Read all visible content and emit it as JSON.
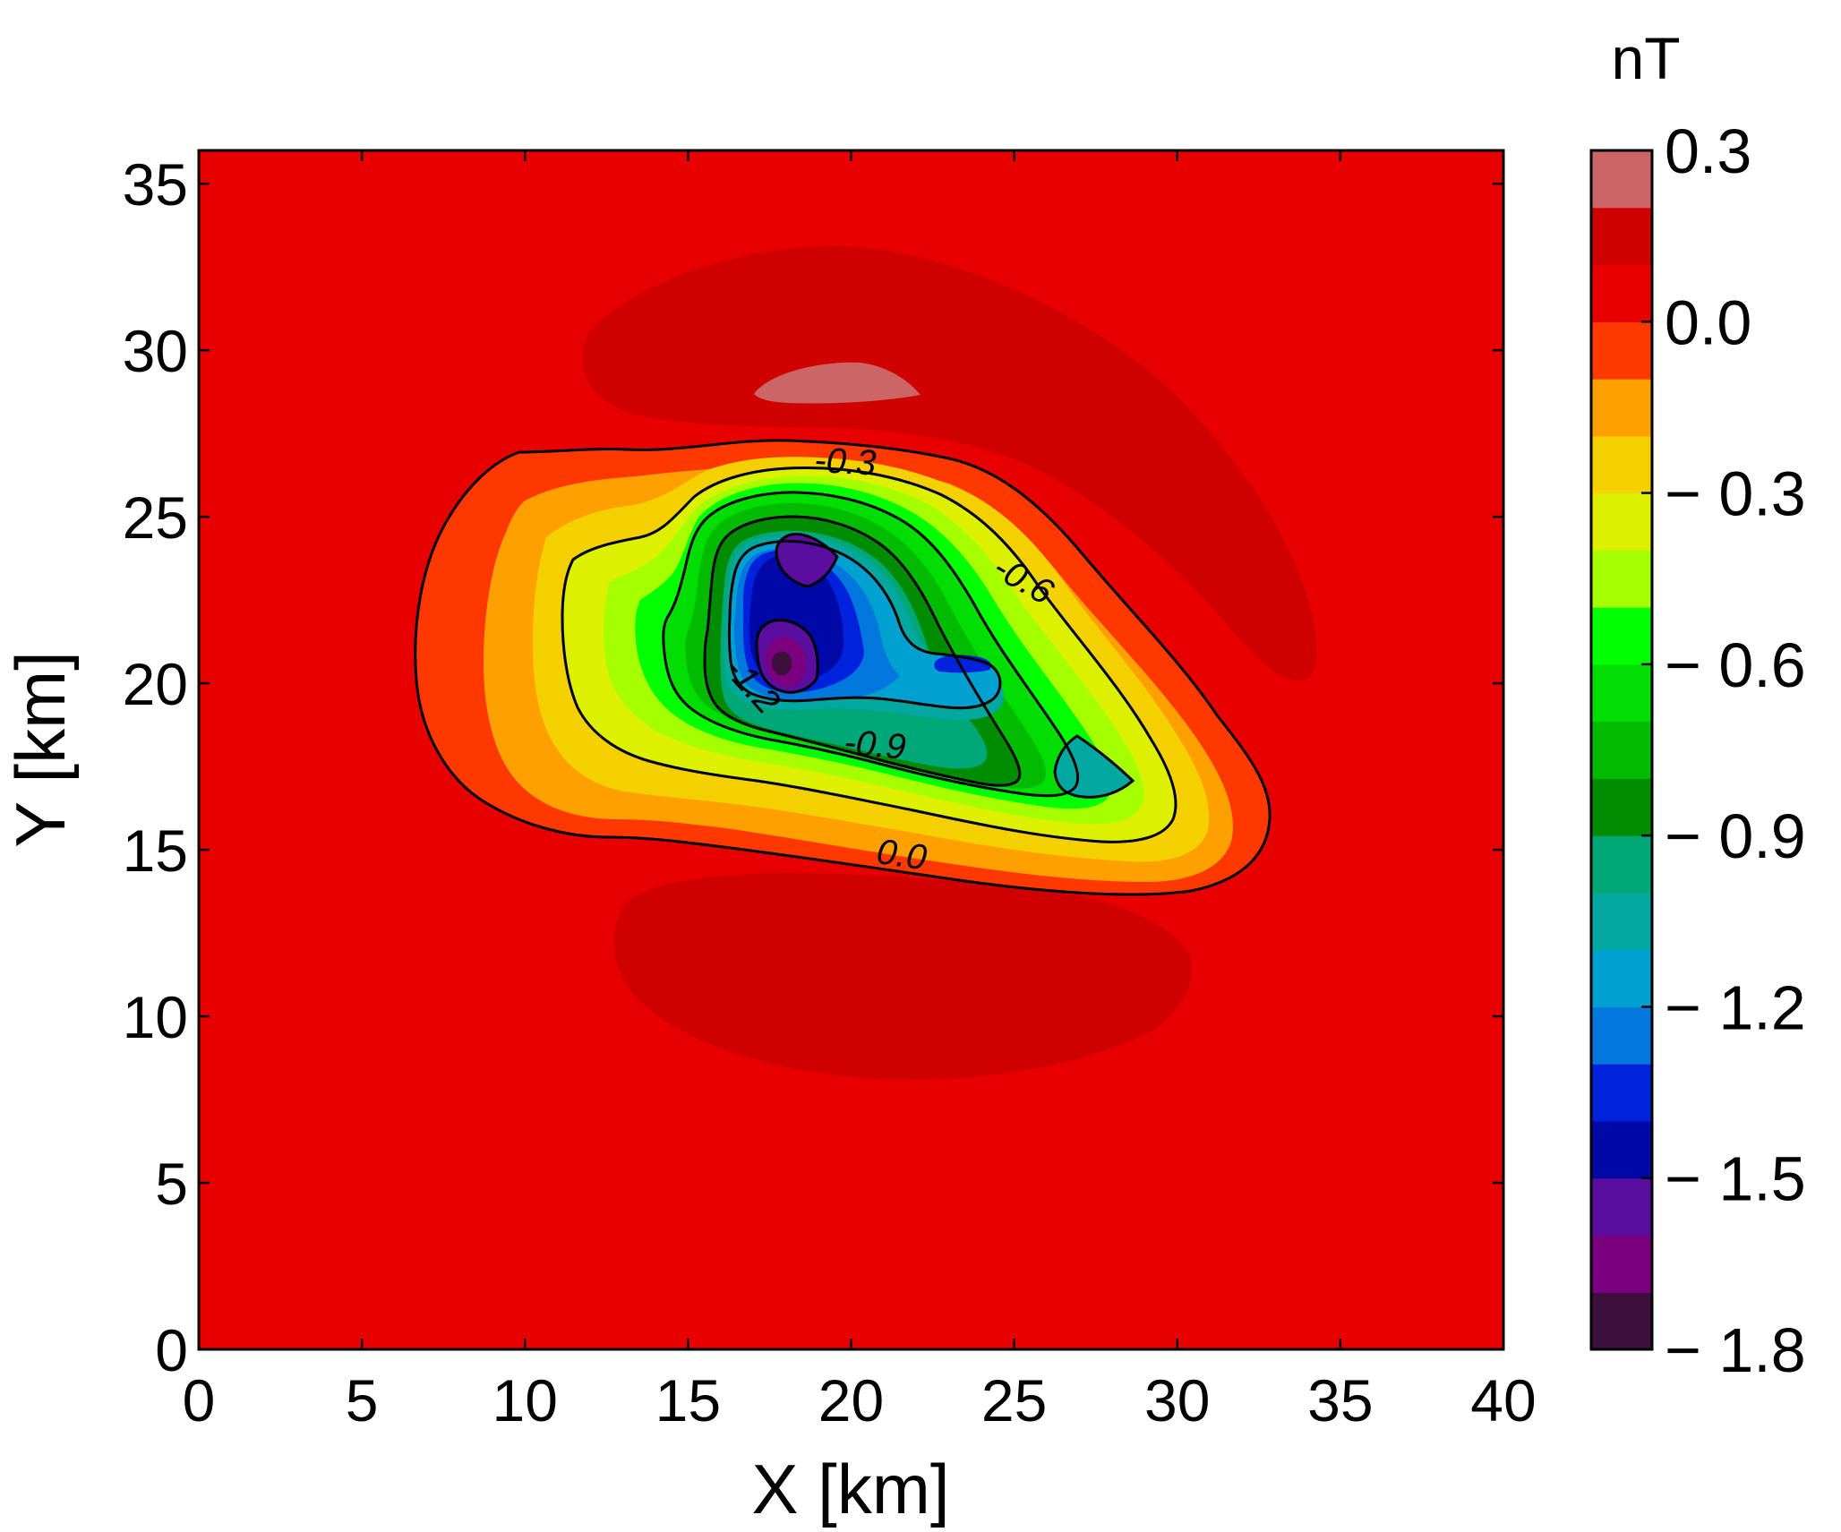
{
  "chart_data": {
    "type": "heatmap",
    "subtype": "filled-contour",
    "xlabel": "X [km]",
    "ylabel": "Y [km]",
    "xlim": [
      0,
      40
    ],
    "ylim": [
      0,
      36
    ],
    "xticks": [
      0,
      5,
      10,
      15,
      20,
      25,
      30,
      35,
      40
    ],
    "yticks": [
      0,
      5,
      10,
      15,
      20,
      25,
      30,
      35
    ],
    "colorbar": {
      "unit_label": "nT",
      "range": [
        -1.8,
        0.3
      ],
      "levels": [
        -1.8,
        -1.7,
        -1.6,
        -1.5,
        -1.4,
        -1.3,
        -1.2,
        -1.1,
        -1.0,
        -0.9,
        -0.8,
        -0.7,
        -0.6,
        -0.5,
        -0.4,
        -0.3,
        -0.2,
        -0.1,
        0.0,
        0.1,
        0.2,
        0.3
      ],
      "colors": [
        "#3d0f3d",
        "#7a0080",
        "#5a0ea0",
        "#0008a8",
        "#0022dd",
        "#0077dd",
        "#00a0d0",
        "#00a8a0",
        "#00a878",
        "#008c00",
        "#00bb00",
        "#00dd00",
        "#00ff00",
        "#a6ff00",
        "#dcf000",
        "#f5d000",
        "#ffa000",
        "#ff3800",
        "#e80000",
        "#d10000",
        "#cc6666"
      ],
      "tick_values": [
        0.3,
        0.0,
        -0.3,
        -0.6,
        -0.9,
        -1.2,
        -1.5,
        -1.8
      ],
      "tick_labels": [
        "0.3",
        "0.0",
        "− 0.3",
        "− 0.6",
        "− 0.9",
        "− 1.2",
        "− 1.5",
        "− 1.8"
      ]
    },
    "contour_lines": [
      {
        "level": 0.0,
        "label": "0.0",
        "label_at": [
          21.5,
          14.5
        ]
      },
      {
        "level": -0.3,
        "label": "-0.3",
        "label_at": [
          19.8,
          26.3
        ]
      },
      {
        "level": -0.6,
        "label": "-0.6",
        "label_at": [
          25.1,
          22.8
        ]
      },
      {
        "level": -0.9,
        "label": "-0.9",
        "label_at": [
          20.7,
          17.8
        ]
      },
      {
        "level": -1.2,
        "label": "-1.2",
        "label_at": [
          16.7,
          19.7
        ]
      },
      {
        "level": -1.5,
        "label": ""
      }
    ],
    "features": {
      "minimum": {
        "x": 17.8,
        "y": 20.6,
        "value": -1.75
      },
      "secondary_minimum": {
        "x": 18.8,
        "y": 23.9,
        "value": -1.55
      },
      "local_minimum_east": {
        "x": 27.8,
        "y": 17.3,
        "value": -1.05
      },
      "maximum": {
        "x": 19.5,
        "y": 29.0,
        "value": 0.25
      }
    }
  }
}
